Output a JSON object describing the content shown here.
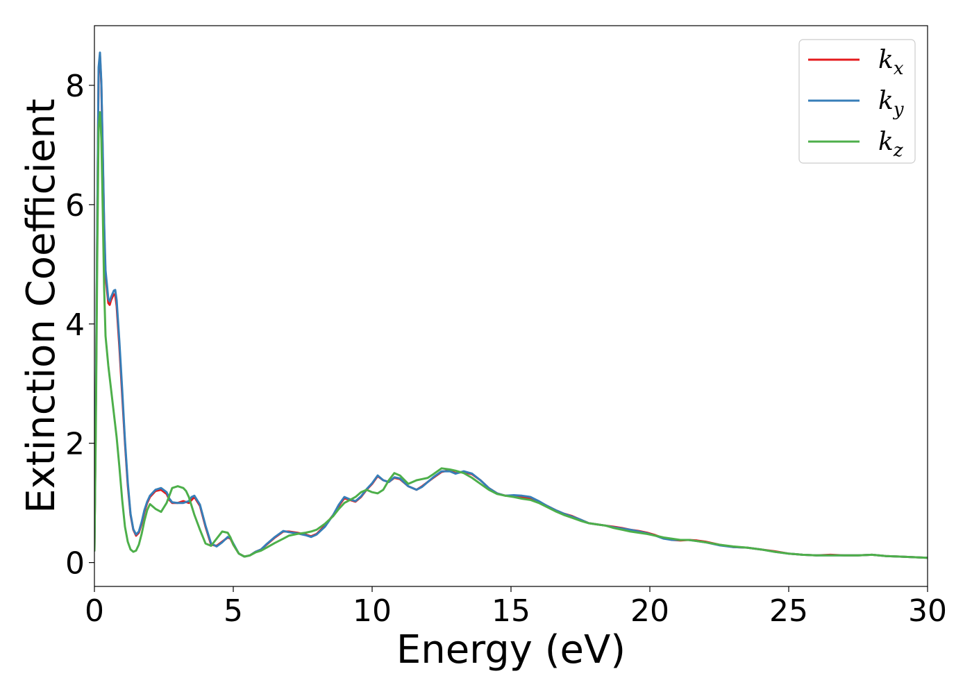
{
  "chart_data": {
    "type": "line",
    "xlabel": "Energy (eV)",
    "ylabel": "Extinction Coefficient",
    "xlim": [
      0,
      30
    ],
    "ylim": [
      -0.4,
      9.0
    ],
    "xticks": [
      0,
      5,
      10,
      15,
      20,
      25,
      30
    ],
    "yticks": [
      0,
      2,
      4,
      6,
      8
    ],
    "grid": false,
    "legend_position": "top-right",
    "series": [
      {
        "name": "k_x",
        "label_base": "k",
        "label_sub": "x",
        "color": "#e41a1c",
        "x": [
          0,
          0.05,
          0.1,
          0.15,
          0.2,
          0.25,
          0.3,
          0.35,
          0.4,
          0.5,
          0.55,
          0.6,
          0.7,
          0.75,
          0.8,
          0.9,
          1.0,
          1.1,
          1.2,
          1.3,
          1.4,
          1.5,
          1.6,
          1.7,
          1.8,
          1.9,
          2.0,
          2.2,
          2.4,
          2.6,
          2.7,
          2.8,
          3.0,
          3.2,
          3.4,
          3.5,
          3.6,
          3.8,
          4.0,
          4.2,
          4.4,
          4.6,
          4.8,
          4.9,
          5.0,
          5.2,
          5.4,
          5.6,
          5.8,
          6.0,
          6.2,
          6.5,
          6.8,
          7.0,
          7.3,
          7.6,
          7.8,
          8.0,
          8.3,
          8.6,
          8.8,
          9.0,
          9.2,
          9.4,
          9.6,
          9.8,
          10.0,
          10.2,
          10.4,
          10.6,
          10.8,
          11.0,
          11.3,
          11.6,
          11.8,
          12.0,
          12.2,
          12.5,
          12.8,
          13.0,
          13.3,
          13.6,
          13.9,
          14.2,
          14.5,
          14.8,
          15.1,
          15.4,
          15.7,
          16.0,
          16.3,
          16.6,
          16.9,
          17.2,
          17.5,
          17.8,
          18.1,
          18.4,
          18.7,
          19.0,
          19.3,
          19.6,
          19.9,
          20.2,
          20.5,
          20.8,
          21.1,
          21.4,
          21.7,
          22.0,
          22.5,
          23.0,
          23.5,
          24.0,
          24.5,
          25.0,
          25.5,
          26.0,
          26.5,
          27.0,
          27.5,
          28.0,
          28.5,
          29.0,
          29.5,
          30.0
        ],
        "y": [
          0.2,
          2.5,
          5.5,
          8.2,
          8.5,
          8.0,
          6.8,
          5.6,
          4.8,
          4.35,
          4.32,
          4.4,
          4.5,
          4.48,
          4.3,
          3.6,
          2.8,
          2.0,
          1.3,
          0.8,
          0.55,
          0.45,
          0.5,
          0.65,
          0.85,
          1.0,
          1.1,
          1.2,
          1.22,
          1.15,
          1.05,
          1.0,
          1.0,
          1.03,
          1.0,
          1.05,
          1.1,
          0.95,
          0.6,
          0.3,
          0.28,
          0.35,
          0.42,
          0.4,
          0.3,
          0.15,
          0.1,
          0.12,
          0.18,
          0.22,
          0.3,
          0.42,
          0.52,
          0.52,
          0.5,
          0.47,
          0.44,
          0.48,
          0.62,
          0.8,
          0.95,
          1.08,
          1.05,
          1.02,
          1.1,
          1.22,
          1.32,
          1.45,
          1.38,
          1.35,
          1.42,
          1.4,
          1.28,
          1.22,
          1.28,
          1.35,
          1.42,
          1.52,
          1.55,
          1.5,
          1.52,
          1.48,
          1.38,
          1.25,
          1.16,
          1.12,
          1.12,
          1.1,
          1.08,
          1.02,
          0.95,
          0.88,
          0.82,
          0.78,
          0.72,
          0.66,
          0.64,
          0.62,
          0.6,
          0.58,
          0.55,
          0.53,
          0.5,
          0.46,
          0.41,
          0.38,
          0.37,
          0.38,
          0.37,
          0.35,
          0.3,
          0.26,
          0.25,
          0.22,
          0.19,
          0.15,
          0.13,
          0.12,
          0.13,
          0.12,
          0.12,
          0.13,
          0.11,
          0.1,
          0.09,
          0.08
        ]
      },
      {
        "name": "k_y",
        "label_base": "k",
        "label_sub": "y",
        "color": "#377eb8",
        "x": [
          0,
          0.05,
          0.1,
          0.15,
          0.2,
          0.25,
          0.3,
          0.35,
          0.4,
          0.5,
          0.55,
          0.6,
          0.7,
          0.75,
          0.8,
          0.9,
          1.0,
          1.1,
          1.2,
          1.3,
          1.4,
          1.5,
          1.6,
          1.7,
          1.8,
          1.9,
          2.0,
          2.2,
          2.4,
          2.6,
          2.7,
          2.8,
          3.0,
          3.2,
          3.4,
          3.5,
          3.6,
          3.8,
          4.0,
          4.2,
          4.4,
          4.6,
          4.8,
          4.9,
          5.0,
          5.2,
          5.4,
          5.6,
          5.8,
          6.0,
          6.2,
          6.5,
          6.8,
          7.0,
          7.3,
          7.6,
          7.8,
          8.0,
          8.3,
          8.6,
          8.8,
          9.0,
          9.2,
          9.4,
          9.6,
          9.8,
          10.0,
          10.2,
          10.4,
          10.6,
          10.8,
          11.0,
          11.3,
          11.6,
          11.8,
          12.0,
          12.2,
          12.5,
          12.8,
          13.0,
          13.3,
          13.6,
          13.9,
          14.2,
          14.5,
          14.8,
          15.1,
          15.4,
          15.7,
          16.0,
          16.3,
          16.6,
          16.9,
          17.2,
          17.5,
          17.8,
          18.1,
          18.4,
          18.7,
          19.0,
          19.3,
          19.6,
          19.9,
          20.2,
          20.5,
          20.8,
          21.1,
          21.4,
          21.7,
          22.0,
          22.5,
          23.0,
          23.5,
          24.0,
          24.5,
          25.0,
          25.5,
          26.0,
          26.5,
          27.0,
          27.5,
          28.0,
          28.5,
          29.0,
          29.5,
          30.0
        ],
        "y": [
          0.2,
          2.6,
          5.6,
          8.3,
          8.55,
          8.05,
          6.9,
          5.7,
          4.9,
          4.42,
          4.38,
          4.45,
          4.56,
          4.57,
          4.4,
          3.7,
          2.9,
          2.05,
          1.35,
          0.82,
          0.56,
          0.47,
          0.52,
          0.68,
          0.88,
          1.02,
          1.12,
          1.22,
          1.25,
          1.18,
          1.07,
          1.01,
          1.0,
          1.0,
          1.03,
          1.1,
          1.12,
          0.97,
          0.62,
          0.32,
          0.27,
          0.34,
          0.43,
          0.41,
          0.32,
          0.15,
          0.1,
          0.12,
          0.18,
          0.22,
          0.31,
          0.43,
          0.53,
          0.51,
          0.49,
          0.46,
          0.43,
          0.47,
          0.6,
          0.8,
          0.97,
          1.1,
          1.06,
          1.03,
          1.11,
          1.23,
          1.33,
          1.46,
          1.38,
          1.35,
          1.43,
          1.41,
          1.28,
          1.22,
          1.27,
          1.35,
          1.43,
          1.53,
          1.53,
          1.49,
          1.53,
          1.49,
          1.38,
          1.25,
          1.16,
          1.12,
          1.13,
          1.12,
          1.1,
          1.03,
          0.95,
          0.88,
          0.82,
          0.77,
          0.72,
          0.66,
          0.64,
          0.62,
          0.59,
          0.57,
          0.55,
          0.52,
          0.49,
          0.45,
          0.4,
          0.38,
          0.38,
          0.38,
          0.36,
          0.34,
          0.29,
          0.26,
          0.25,
          0.22,
          0.18,
          0.15,
          0.13,
          0.12,
          0.12,
          0.12,
          0.12,
          0.13,
          0.11,
          0.1,
          0.09,
          0.08
        ]
      },
      {
        "name": "k_z",
        "label_base": "k",
        "label_sub": "z",
        "color": "#4daf4a",
        "x": [
          0,
          0.05,
          0.1,
          0.15,
          0.2,
          0.25,
          0.3,
          0.35,
          0.4,
          0.5,
          0.6,
          0.7,
          0.8,
          0.9,
          1.0,
          1.1,
          1.2,
          1.3,
          1.4,
          1.5,
          1.6,
          1.7,
          1.8,
          1.9,
          2.0,
          2.2,
          2.4,
          2.6,
          2.8,
          3.0,
          3.2,
          3.3,
          3.4,
          3.5,
          3.6,
          3.8,
          4.0,
          4.2,
          4.4,
          4.6,
          4.8,
          4.9,
          5.0,
          5.2,
          5.4,
          5.6,
          5.8,
          6.0,
          6.2,
          6.5,
          6.8,
          7.0,
          7.3,
          7.6,
          7.8,
          8.0,
          8.3,
          8.6,
          8.8,
          9.0,
          9.2,
          9.4,
          9.6,
          9.8,
          10.0,
          10.2,
          10.4,
          10.6,
          10.8,
          11.0,
          11.3,
          11.6,
          11.8,
          12.0,
          12.2,
          12.5,
          12.8,
          13.0,
          13.3,
          13.6,
          13.9,
          14.2,
          14.5,
          14.8,
          15.1,
          15.4,
          15.7,
          16.0,
          16.3,
          16.6,
          16.9,
          17.2,
          17.5,
          17.8,
          18.1,
          18.4,
          18.7,
          19.0,
          19.3,
          19.6,
          19.9,
          20.2,
          20.5,
          20.8,
          21.1,
          21.4,
          21.7,
          22.0,
          22.5,
          23.0,
          23.5,
          24.0,
          24.5,
          25.0,
          25.5,
          26.0,
          26.5,
          27.0,
          27.5,
          28.0,
          28.5,
          29.0,
          29.5,
          30.0
        ],
        "y": [
          0.2,
          2.2,
          5.0,
          7.3,
          7.55,
          7.1,
          5.9,
          4.6,
          3.8,
          3.3,
          2.9,
          2.5,
          2.1,
          1.6,
          1.05,
          0.6,
          0.35,
          0.22,
          0.18,
          0.2,
          0.3,
          0.48,
          0.7,
          0.88,
          0.98,
          0.9,
          0.85,
          1.0,
          1.25,
          1.28,
          1.25,
          1.2,
          1.1,
          0.95,
          0.8,
          0.55,
          0.32,
          0.28,
          0.4,
          0.52,
          0.5,
          0.42,
          0.3,
          0.15,
          0.1,
          0.12,
          0.17,
          0.2,
          0.25,
          0.33,
          0.4,
          0.45,
          0.48,
          0.5,
          0.52,
          0.55,
          0.65,
          0.78,
          0.9,
          1.0,
          1.05,
          1.1,
          1.18,
          1.22,
          1.18,
          1.16,
          1.22,
          1.38,
          1.5,
          1.46,
          1.32,
          1.38,
          1.4,
          1.42,
          1.48,
          1.58,
          1.56,
          1.54,
          1.5,
          1.42,
          1.32,
          1.22,
          1.15,
          1.12,
          1.1,
          1.07,
          1.05,
          1.0,
          0.93,
          0.86,
          0.8,
          0.75,
          0.7,
          0.66,
          0.64,
          0.62,
          0.58,
          0.55,
          0.52,
          0.5,
          0.48,
          0.45,
          0.42,
          0.4,
          0.38,
          0.38,
          0.36,
          0.34,
          0.3,
          0.27,
          0.25,
          0.22,
          0.18,
          0.15,
          0.13,
          0.12,
          0.12,
          0.12,
          0.12,
          0.13,
          0.11,
          0.1,
          0.09,
          0.08
        ]
      }
    ]
  }
}
